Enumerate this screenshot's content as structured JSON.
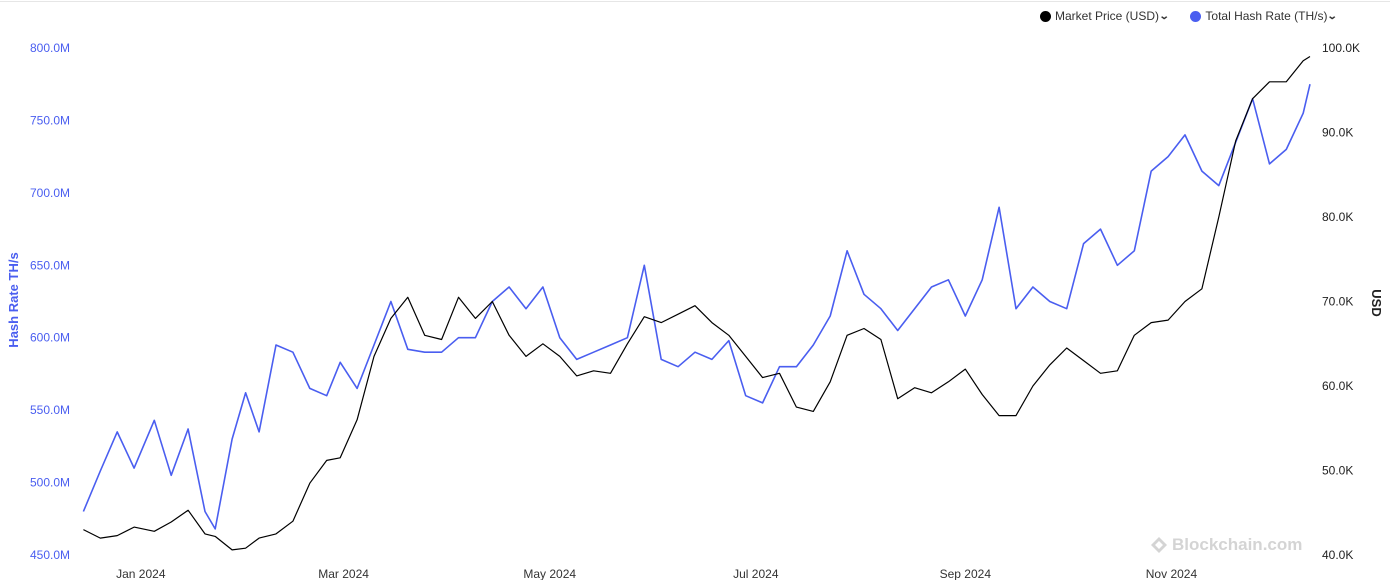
{
  "legend": {
    "items": [
      {
        "label": "Market Price (USD)",
        "color": "#000000",
        "icon": "chevron-down-icon"
      },
      {
        "label": "Total Hash Rate (TH/s)",
        "color": "#4a5ef0",
        "icon": "chevron-down-icon"
      }
    ]
  },
  "watermark": "Blockchain.com",
  "chart_data": {
    "type": "line",
    "title": "",
    "x_ticks": [
      "Jan 2024",
      "Mar 2024",
      "May 2024",
      "Jul 2024",
      "Sep 2024",
      "Nov 2024"
    ],
    "x_tick_dates": [
      "2024-01-01",
      "2024-03-01",
      "2024-05-01",
      "2024-07-01",
      "2024-09-01",
      "2024-11-01"
    ],
    "xlim": [
      "2023-12-14",
      "2024-12-12"
    ],
    "y_left": {
      "label": "Hash Rate TH/s",
      "ticks": [
        "450.0M",
        "500.0M",
        "550.0M",
        "600.0M",
        "650.0M",
        "700.0M",
        "750.0M",
        "800.0M"
      ],
      "lim": [
        450,
        800
      ],
      "unit": "M TH/s"
    },
    "y_right": {
      "label": "USD",
      "ticks": [
        "40.0K",
        "50.0K",
        "60.0K",
        "70.0K",
        "80.0K",
        "90.0K",
        "100.0K"
      ],
      "lim": [
        40,
        100
      ],
      "unit": "K USD"
    },
    "grid": false,
    "legend_placement": "top-right",
    "x": [
      "2023-12-15",
      "2023-12-20",
      "2023-12-25",
      "2023-12-30",
      "2024-01-05",
      "2024-01-10",
      "2024-01-15",
      "2024-01-20",
      "2024-01-23",
      "2024-01-28",
      "2024-02-01",
      "2024-02-05",
      "2024-02-10",
      "2024-02-15",
      "2024-02-20",
      "2024-02-25",
      "2024-02-29",
      "2024-03-05",
      "2024-03-10",
      "2024-03-15",
      "2024-03-20",
      "2024-03-25",
      "2024-03-30",
      "2024-04-04",
      "2024-04-09",
      "2024-04-14",
      "2024-04-19",
      "2024-04-24",
      "2024-04-29",
      "2024-05-04",
      "2024-05-09",
      "2024-05-14",
      "2024-05-19",
      "2024-05-24",
      "2024-05-29",
      "2024-06-03",
      "2024-06-08",
      "2024-06-13",
      "2024-06-18",
      "2024-06-23",
      "2024-06-28",
      "2024-07-03",
      "2024-07-08",
      "2024-07-13",
      "2024-07-18",
      "2024-07-23",
      "2024-07-28",
      "2024-08-02",
      "2024-08-07",
      "2024-08-12",
      "2024-08-17",
      "2024-08-22",
      "2024-08-27",
      "2024-09-01",
      "2024-09-06",
      "2024-09-11",
      "2024-09-16",
      "2024-09-21",
      "2024-09-26",
      "2024-10-01",
      "2024-10-06",
      "2024-10-11",
      "2024-10-16",
      "2024-10-21",
      "2024-10-26",
      "2024-10-31",
      "2024-11-05",
      "2024-11-10",
      "2024-11-15",
      "2024-11-20",
      "2024-11-25",
      "2024-11-30",
      "2024-12-05",
      "2024-12-10",
      "2024-12-12"
    ],
    "series": [
      {
        "name": "Total Hash Rate (TH/s)",
        "axis": "left",
        "color": "#4a5ef0",
        "values": [
          480,
          508,
          535,
          510,
          543,
          505,
          537,
          480,
          468,
          530,
          562,
          535,
          595,
          590,
          565,
          560,
          583,
          565,
          595,
          625,
          592,
          590,
          590,
          600,
          600,
          625,
          635,
          620,
          635,
          600,
          585,
          590,
          595,
          600,
          650,
          585,
          580,
          590,
          585,
          598,
          560,
          555,
          580,
          580,
          595,
          615,
          660,
          630,
          620,
          605,
          620,
          635,
          640,
          615,
          640,
          690,
          620,
          635,
          625,
          620,
          665,
          675,
          650,
          660,
          715,
          725,
          740,
          715,
          705,
          735,
          765,
          720,
          730,
          755,
          775
        ]
      },
      {
        "name": "Market Price (USD)",
        "axis": "right",
        "color": "#000000",
        "values": [
          43.0,
          42.0,
          42.3,
          43.3,
          42.8,
          43.9,
          45.3,
          42.5,
          42.2,
          40.6,
          40.8,
          42.0,
          42.5,
          44.0,
          48.5,
          51.2,
          51.5,
          56.0,
          63.5,
          68.0,
          70.5,
          66.0,
          65.5,
          70.5,
          68.0,
          70.0,
          66.0,
          63.5,
          65.0,
          63.5,
          61.2,
          61.8,
          61.5,
          65.0,
          68.2,
          67.5,
          68.5,
          69.5,
          67.5,
          66.0,
          63.5,
          61.0,
          61.5,
          57.5,
          57.0,
          60.5,
          66.0,
          66.8,
          65.5,
          58.5,
          59.8,
          59.2,
          60.5,
          62.0,
          59.0,
          56.5,
          56.5,
          60.0,
          62.5,
          64.5,
          63.0,
          61.5,
          61.8,
          66.0,
          67.5,
          67.8,
          70.0,
          71.5,
          80.0,
          89.0,
          94.0,
          96.0,
          96.0,
          98.5,
          99.0
        ]
      }
    ]
  }
}
